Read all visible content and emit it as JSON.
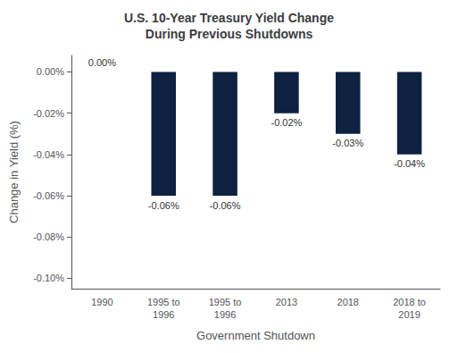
{
  "chart_data": {
    "type": "bar",
    "title": "U.S. 10-Year Treasury Yield Change\nDuring Previous Shutdowns",
    "xlabel": "Government Shutdown",
    "ylabel": "Change in Yield (%)",
    "categories": [
      "1990",
      "1995 to\n1996",
      "1995 to\n1996",
      "2013",
      "2018",
      "2018 to\n2019"
    ],
    "values": [
      0.0,
      -0.06,
      -0.06,
      -0.02,
      -0.03,
      -0.04
    ],
    "value_labels": [
      "0.00%",
      "-0.06%",
      "-0.06%",
      "-0.02%",
      "-0.03%",
      "-0.04%"
    ],
    "data_labels": true,
    "color": "#0d2240",
    "ylim": [
      -0.105,
      0.008
    ],
    "yticks": [
      {
        "value": 0.0,
        "label": "0.00%"
      },
      {
        "value": -0.02,
        "label": "-0.02%"
      },
      {
        "value": -0.04,
        "label": "-0.04%"
      },
      {
        "value": -0.06,
        "label": "-0.06%"
      },
      {
        "value": -0.08,
        "label": "-0.08%"
      },
      {
        "value": -0.1,
        "label": "-0.10%"
      }
    ],
    "grid": false
  }
}
